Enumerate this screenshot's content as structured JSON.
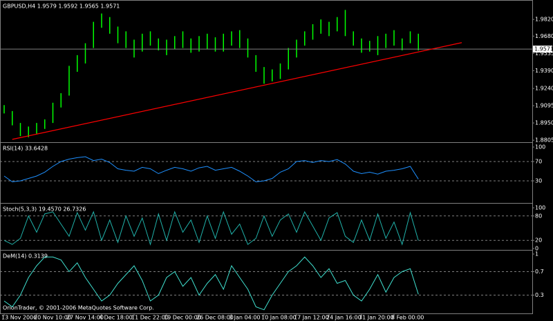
{
  "chart_data": [
    {
      "type": "ohlc",
      "title": "GBPUSD,H4  1.9579 1.9592 1.9565 1.9571",
      "color": "#00ff00",
      "categories": [
        "13 Nov 2006",
        null,
        null,
        null,
        "20 Nov 10:00",
        null,
        null,
        null,
        "27 Nov 14:00",
        null,
        null,
        null,
        "4 Dec 18:00",
        null,
        null,
        null,
        "11 Dec 22:00",
        null,
        null,
        null,
        "19 Dec 00:00",
        null,
        null,
        null,
        "26 Dec 08:00",
        null,
        null,
        null,
        "3 Jan 04:00",
        null,
        null,
        null,
        "10 Jan 08:00",
        null,
        null,
        null,
        "17 Jan 12:00",
        null,
        null,
        null,
        "24 Jan 16:00",
        null,
        null,
        null,
        "31 Jan 20:00",
        null,
        null,
        null,
        "8 Feb 00:00",
        null,
        null,
        null
      ],
      "high": [
        1.91,
        1.905,
        1.895,
        1.892,
        1.895,
        1.898,
        1.912,
        1.92,
        1.943,
        1.952,
        1.962,
        1.98,
        1.987,
        1.984,
        1.976,
        1.972,
        1.965,
        1.97,
        1.972,
        1.966,
        1.965,
        1.968,
        1.972,
        1.966,
        1.968,
        1.97,
        1.967,
        1.97,
        1.972,
        1.973,
        1.966,
        1.952,
        1.942,
        1.94,
        1.945,
        1.958,
        1.965,
        1.972,
        1.978,
        1.982,
        1.98,
        1.984,
        1.99,
        1.972,
        1.966,
        1.964,
        1.968,
        1.97,
        1.973,
        1.966,
        1.972,
        1.97
      ],
      "low": [
        1.903,
        1.893,
        1.884,
        1.883,
        1.886,
        1.89,
        1.895,
        1.908,
        1.918,
        1.938,
        1.945,
        1.958,
        1.975,
        1.97,
        1.962,
        1.958,
        1.95,
        1.955,
        1.96,
        1.956,
        1.952,
        1.957,
        1.958,
        1.954,
        1.955,
        1.957,
        1.955,
        1.955,
        1.96,
        1.958,
        1.95,
        1.938,
        1.928,
        1.93,
        1.932,
        1.94,
        1.95,
        1.96,
        1.965,
        1.97,
        1.968,
        1.972,
        1.968,
        1.96,
        1.954,
        1.955,
        1.952,
        1.958,
        1.96,
        1.956,
        1.962,
        1.956
      ],
      "current_price": 1.9571,
      "trendline": [
        1.8812,
        1.9625
      ],
      "trend_color": "#ff0000",
      "ylim": [
        1.8794,
        1.9966
      ],
      "yticks": [
        {
          "value": 1.982,
          "label": "1.9820"
        },
        {
          "value": 1.968,
          "label": "1.9680"
        },
        1.9535,
        {
          "value": 1.939,
          "label": "1.9390"
        },
        {
          "value": 1.924,
          "label": "1.9240"
        },
        1.9095,
        {
          "value": 1.895,
          "label": "1.8950"
        },
        1.8805
      ]
    },
    {
      "type": "line",
      "title": "RSI(14) 33.6428",
      "color": "#1e90ff",
      "ylim": [
        0,
        100
      ],
      "yticks": [
        100,
        70,
        30
      ],
      "values": [
        40,
        28,
        30,
        35,
        40,
        48,
        60,
        70,
        75,
        78,
        80,
        72,
        75,
        68,
        55,
        52,
        50,
        58,
        55,
        45,
        52,
        58,
        55,
        50,
        57,
        60,
        52,
        55,
        58,
        50,
        40,
        28,
        30,
        35,
        48,
        55,
        70,
        72,
        68,
        72,
        70,
        74,
        65,
        50,
        45,
        48,
        44,
        50,
        52,
        55,
        60,
        33.6428
      ]
    },
    {
      "type": "line",
      "title": "Stoch(5,3,3) 19.4570 26.7326",
      "color": "#20b2aa",
      "ylim": [
        0,
        100
      ],
      "yticks": [
        100,
        80,
        20,
        0
      ],
      "values": [
        20,
        10,
        25,
        80,
        40,
        85,
        90,
        60,
        30,
        88,
        45,
        90,
        20,
        70,
        15,
        80,
        30,
        75,
        10,
        85,
        20,
        90,
        40,
        70,
        15,
        80,
        25,
        90,
        35,
        60,
        10,
        25,
        80,
        30,
        70,
        85,
        40,
        90,
        55,
        20,
        75,
        88,
        30,
        15,
        70,
        20,
        85,
        25,
        65,
        10,
        88,
        19.457
      ]
    },
    {
      "type": "line",
      "title": "DeM(14) 0.3139",
      "color": "#40e0d0",
      "ylim": [
        0,
        1
      ],
      "yticks": [
        1,
        0.7,
        0.3
      ],
      "values": [
        0.2,
        0.1,
        0.3,
        0.6,
        0.8,
        0.95,
        0.95,
        0.9,
        0.7,
        0.85,
        0.6,
        0.4,
        0.2,
        0.3,
        0.5,
        0.65,
        0.8,
        0.55,
        0.2,
        0.3,
        0.6,
        0.7,
        0.45,
        0.6,
        0.3,
        0.5,
        0.65,
        0.4,
        0.8,
        0.6,
        0.4,
        0.1,
        0.05,
        0.3,
        0.5,
        0.7,
        0.8,
        0.95,
        0.8,
        0.6,
        0.75,
        0.5,
        0.55,
        0.3,
        0.2,
        0.4,
        0.65,
        0.35,
        0.6,
        0.7,
        0.75,
        0.3139
      ]
    }
  ],
  "copyright": "OrionTrader, © 2001-2006 MetaQuotes Software Corp."
}
